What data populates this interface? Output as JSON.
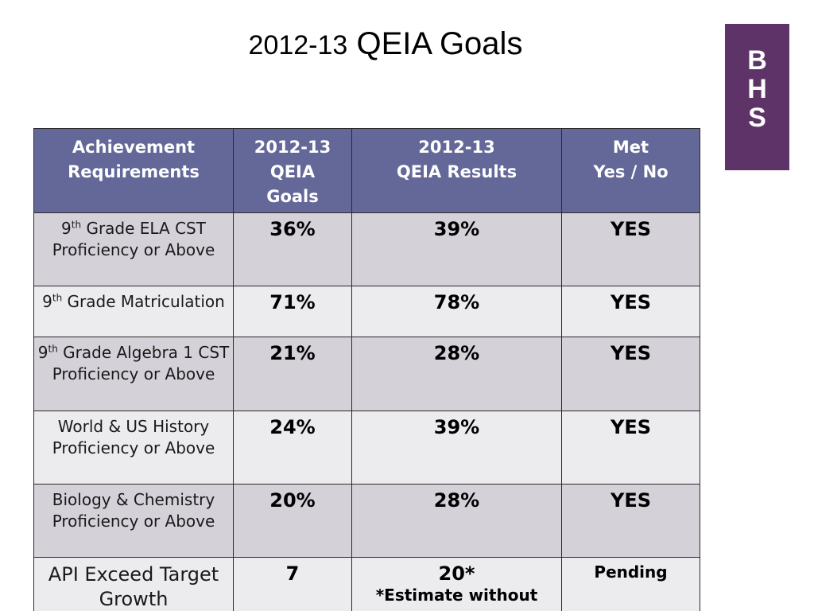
{
  "title": {
    "year": "2012-13",
    "text": "QEIA Goals"
  },
  "badge": {
    "letters": [
      "B",
      "H",
      "S"
    ]
  },
  "colors": {
    "header_bg": "#636899",
    "row_dark": "#d4d1d9",
    "row_light": "#ecebee",
    "badge_bg": "#5e3468"
  },
  "table": {
    "headers": [
      {
        "lines": [
          "Achievement",
          "Requirements"
        ]
      },
      {
        "lines": [
          "2012-13",
          "QEIA",
          "Goals"
        ]
      },
      {
        "lines": [
          "2012-13",
          "QEIA Results"
        ]
      },
      {
        "lines": [
          "Met",
          "Yes / No"
        ]
      }
    ],
    "rows": [
      {
        "req_pre": "9",
        "req_sup": "th",
        "req_post": " Grade ELA CST Proficiency or Above",
        "goal": "36%",
        "result": "39%",
        "met": "YES"
      },
      {
        "req_pre": "9",
        "req_sup": "th",
        "req_post": " Grade Matriculation",
        "goal": "71%",
        "result": "78%",
        "met": "YES"
      },
      {
        "req_pre": "9",
        "req_sup": "th",
        "req_post": " Grade Algebra 1 CST Proficiency or Above",
        "goal": "21%",
        "result": "28%",
        "met": "YES"
      },
      {
        "req_pre": "World & US History Proficiency or Above",
        "req_sup": "",
        "req_post": "",
        "goal": "24%",
        "result": "39%",
        "met": "YES"
      },
      {
        "req_pre": "Biology & Chemistry Proficiency or Above",
        "req_sup": "",
        "req_post": "",
        "goal": "20%",
        "result": "28%",
        "met": "YES"
      }
    ],
    "api_row": {
      "req": "API Exceed Target Growth",
      "goal": "7",
      "result": "20*",
      "result_note": "*Estimate without",
      "met": "Pending"
    }
  }
}
